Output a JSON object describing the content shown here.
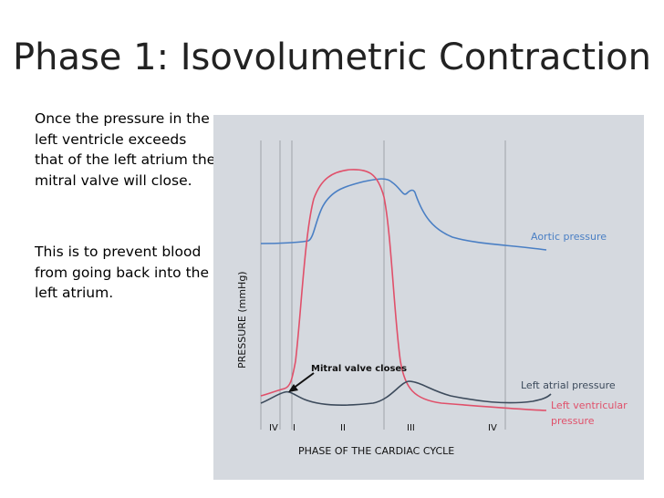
{
  "slide": {
    "title": "Phase 1: Isovolumetric Contraction",
    "paragraph_1": "Once the pressure in the left ventricle exceeds that of the left atrium the mitral valve will close.",
    "paragraph_2": "This is to prevent blood from going back into the left atrium."
  },
  "diagram": {
    "y_axis_label": "PRESSURE (mmHg)",
    "x_axis_label": "PHASE OF THE CARDIAC CYCLE",
    "phase_labels": [
      "IV",
      "I",
      "II",
      "III",
      "IV"
    ],
    "annotation": "Mitral valve closes",
    "legend": {
      "aortic": "Aortic pressure",
      "left_atrial": "Left atrial pressure",
      "left_ventricular_line1": "Left ventricular",
      "left_ventricular_line2": "pressure"
    },
    "colors": {
      "aortic": "#4a7fc4",
      "left_ventricular": "#e0506a",
      "left_atrial": "#3d4b5c",
      "background": "#d5d9df"
    }
  }
}
